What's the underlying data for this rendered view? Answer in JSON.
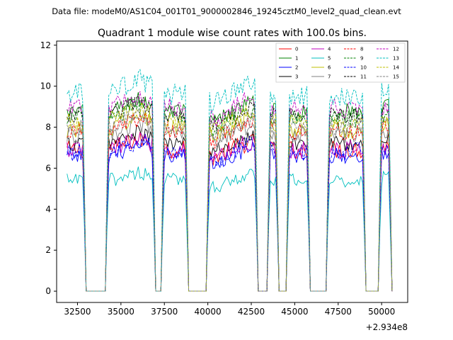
{
  "figure": {
    "suptitle": "Data file: modeM0/AS1C04_001T01_9000002846_19245cztM0_level2_quad_clean.evt"
  },
  "chart_data": {
    "type": "line",
    "title": "Quadrant 1 module wise count rates with 100.0s bins.",
    "xlabel": "",
    "ylabel": "",
    "x_offset_label": "+2.934e8",
    "xlim": [
      31300,
      51500
    ],
    "ylim": [
      -0.55,
      12.2
    ],
    "xticks": [
      32500,
      35000,
      37500,
      40000,
      42500,
      45000,
      47500,
      50000
    ],
    "xtick_labels": [
      "32500",
      "35000",
      "37500",
      "40000",
      "42500",
      "45000",
      "47500",
      "50000"
    ],
    "yticks": [
      0,
      2,
      4,
      6,
      8,
      10,
      12
    ],
    "ytick_labels": [
      "0",
      "2",
      "4",
      "6",
      "8",
      "10",
      "12"
    ],
    "bin_seconds": 100,
    "data_segments": [
      [
        31900,
        32900
      ],
      [
        34200,
        36900
      ],
      [
        37400,
        38800
      ],
      [
        40000,
        42800
      ],
      [
        43500,
        44000
      ],
      [
        44600,
        45800
      ],
      [
        46900,
        49000
      ],
      [
        49900,
        50500
      ]
    ],
    "series": [
      {
        "name": "0",
        "color": "#ff0000",
        "dash": "solid",
        "level": 6.9,
        "amp": 0.45
      },
      {
        "name": "1",
        "color": "#008000",
        "dash": "solid",
        "level": 8.7,
        "amp": 0.45
      },
      {
        "name": "2",
        "color": "#0000ff",
        "dash": "solid",
        "level": 6.6,
        "amp": 0.4
      },
      {
        "name": "3",
        "color": "#000000",
        "dash": "solid",
        "level": 7.2,
        "amp": 0.4
      },
      {
        "name": "4",
        "color": "#bf00bf",
        "dash": "solid",
        "level": 6.9,
        "amp": 0.45
      },
      {
        "name": "5",
        "color": "#00bfbf",
        "dash": "solid",
        "level": 5.4,
        "amp": 0.35
      },
      {
        "name": "6",
        "color": "#bfbf00",
        "dash": "solid",
        "level": 7.9,
        "amp": 0.45
      },
      {
        "name": "7",
        "color": "#808080",
        "dash": "solid",
        "level": 7.6,
        "amp": 0.4
      },
      {
        "name": "8",
        "color": "#ff0000",
        "dash": "dashed",
        "level": 7.8,
        "amp": 0.45
      },
      {
        "name": "9",
        "color": "#008000",
        "dash": "dashed",
        "level": 8.4,
        "amp": 0.45
      },
      {
        "name": "10",
        "color": "#0000ff",
        "dash": "dashed",
        "level": 6.8,
        "amp": 0.45
      },
      {
        "name": "11",
        "color": "#000000",
        "dash": "dashed",
        "level": 8.6,
        "amp": 0.4
      },
      {
        "name": "12",
        "color": "#bf00bf",
        "dash": "dashed",
        "level": 8.9,
        "amp": 0.45
      },
      {
        "name": "13",
        "color": "#00bfbf",
        "dash": "dashed",
        "level": 9.6,
        "amp": 0.55
      },
      {
        "name": "14",
        "color": "#bfbf00",
        "dash": "dashed",
        "level": 8.3,
        "amp": 0.4
      },
      {
        "name": "15",
        "color": "#808080",
        "dash": "dashed",
        "level": 8.0,
        "amp": 0.4
      }
    ],
    "legend_position": "top-right",
    "grid": false
  }
}
